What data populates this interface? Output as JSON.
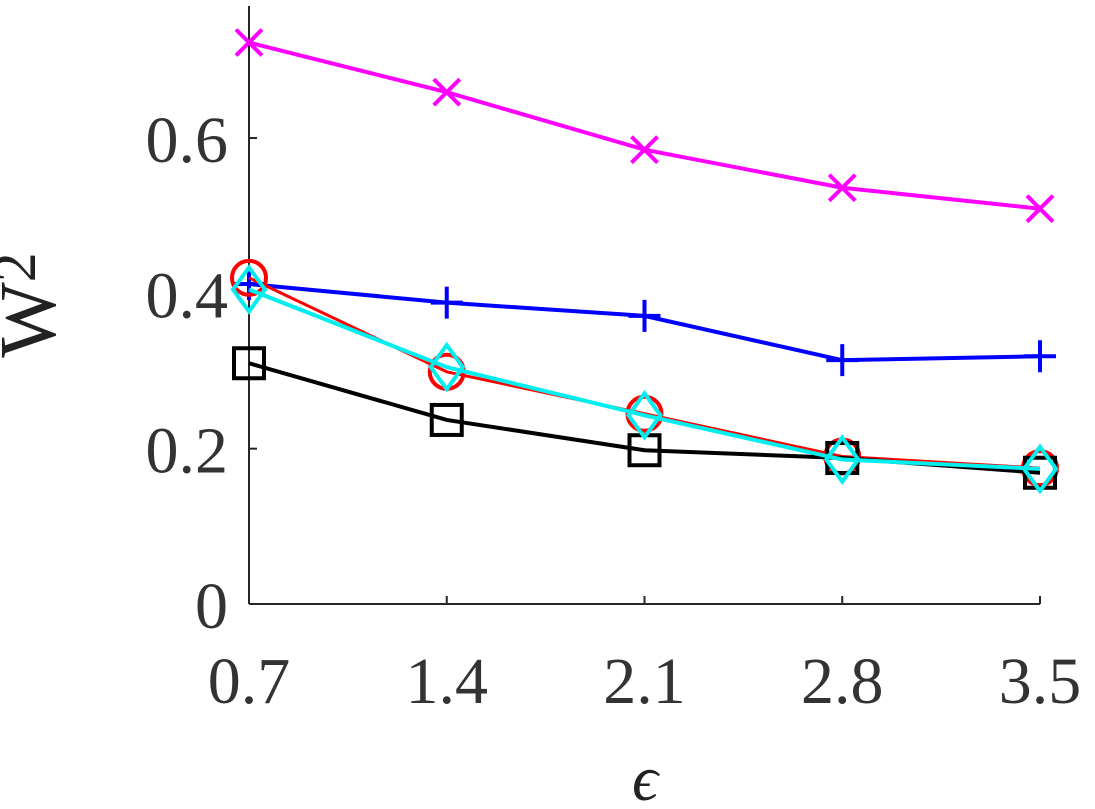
{
  "chart_data": {
    "type": "line",
    "xlabel": "ϵ",
    "ylabel": "W",
    "ylabel_subscript": "2",
    "x": [
      0.7,
      1.4,
      2.1,
      2.8,
      3.5
    ],
    "xlim": [
      0.7,
      3.5
    ],
    "ylim": [
      0,
      0.77
    ],
    "xticks": [
      "0.7",
      "1.4",
      "2.1",
      "2.8",
      "3.5"
    ],
    "yticks": [
      "0",
      "0.2",
      "0.4",
      "0.6"
    ],
    "grid": false,
    "legend": "none",
    "series": [
      {
        "color": "#ff00ff",
        "marker": "x",
        "values": [
          0.723,
          0.659,
          0.585,
          0.536,
          0.509
        ]
      },
      {
        "color": "#0000ff",
        "marker": "+",
        "values": [
          0.412,
          0.388,
          0.371,
          0.314,
          0.319
        ]
      },
      {
        "color": "#ff0000",
        "marker": "o",
        "values": [
          0.42,
          0.299,
          0.245,
          0.19,
          0.175
        ]
      },
      {
        "color": "#000000",
        "marker": "square",
        "values": [
          0.31,
          0.237,
          0.198,
          0.188,
          0.169
        ]
      },
      {
        "color": "#00eeee",
        "marker": "diamond",
        "values": [
          0.405,
          0.305,
          0.243,
          0.186,
          0.174
        ]
      }
    ]
  }
}
